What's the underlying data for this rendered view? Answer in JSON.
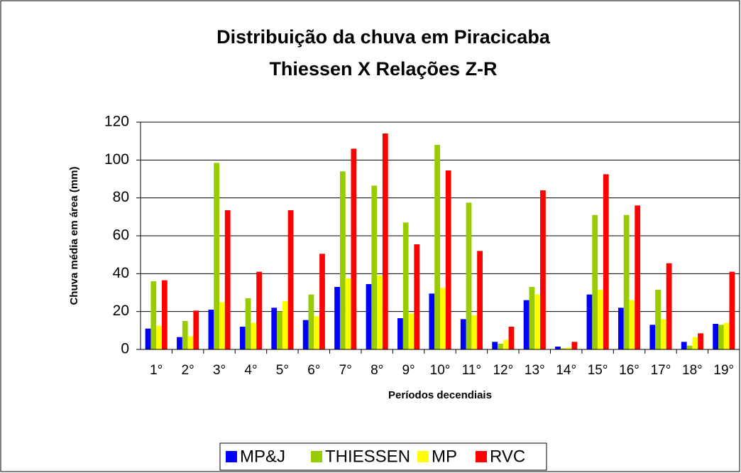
{
  "chart_data": {
    "type": "bar",
    "title": [
      "Distribuição da chuva em Piracicaba",
      "Thiessen X Relações Z-R"
    ],
    "y_label": "Chuva média em área (mm)",
    "x_label": "Períodos decendiais",
    "categories": [
      "1°",
      "2°",
      "3°",
      "4°",
      "5°",
      "6°",
      "7°",
      "8°",
      "9°",
      "10°",
      "11°",
      "12°",
      "13°",
      "14°",
      "15°",
      "16°",
      "17°",
      "18°",
      "19°"
    ],
    "series": [
      {
        "name": "MP&J",
        "color": "#0000ff",
        "values": [
          11,
          6.5,
          21,
          12,
          22,
          15.5,
          33,
          34.5,
          16.5,
          29.5,
          16,
          4,
          26,
          1.5,
          29,
          22,
          13,
          4,
          13.5
        ]
      },
      {
        "name": "THIESSEN",
        "color": "#99cc00",
        "values": [
          36,
          15,
          98.5,
          27,
          20,
          29,
          94,
          86.5,
          67,
          108,
          77.5,
          3,
          33,
          0.5,
          71,
          71,
          31.5,
          2,
          13
        ]
      },
      {
        "name": "MP",
        "color": "#ffff00",
        "values": [
          12.5,
          7,
          25,
          14,
          25.5,
          17.5,
          37.5,
          39,
          19,
          32.5,
          18,
          5,
          29,
          1,
          31.5,
          26,
          16,
          6.5,
          14
        ]
      },
      {
        "name": "RVC",
        "color": "#ff0000",
        "values": [
          36.5,
          20.5,
          73.5,
          41,
          73.5,
          50.5,
          106,
          114,
          55.5,
          94.5,
          52,
          12,
          84,
          4,
          92.5,
          76,
          45.5,
          8.5,
          41
        ]
      }
    ],
    "ylim": [
      0,
      120
    ],
    "yticks": [
      0,
      20,
      40,
      60,
      80,
      100,
      120
    ],
    "grid": true,
    "legend": "bottom"
  }
}
